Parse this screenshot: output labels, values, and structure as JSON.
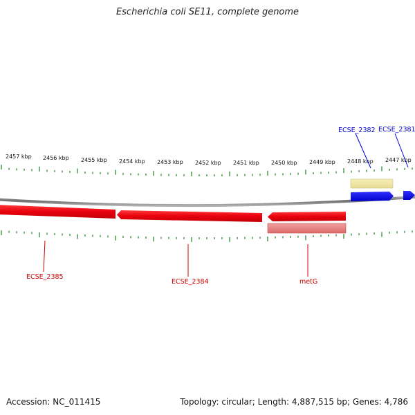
{
  "title": "Escherichia coli SE11, complete genome",
  "footer": {
    "accession": "Accession: NC_011415",
    "summary": "Topology: circular; Length: 4,887,515 bp; Genes: 4,786"
  },
  "colors": {
    "reverse_gene": "#e8000d",
    "reverse_gene_light": "#e88080",
    "forward_gene": "#0000e0",
    "forward_gene_light": "#efe6a0",
    "tick": "#2e8b2e",
    "backbone": "#8a8a8a"
  },
  "scale": {
    "unit": "kbp",
    "labels": [
      "2457 kbp",
      "2456 kbp",
      "2455 kbp",
      "2454 kbp",
      "2453 kbp",
      "2452 kbp",
      "2451 kbp",
      "2450 kbp",
      "2449 kbp",
      "2448 kbp",
      "2447 kbp"
    ]
  },
  "genes": [
    {
      "name": "ECSE_2381",
      "strand": "forward"
    },
    {
      "name": "ECSE_2382",
      "strand": "forward"
    },
    {
      "name": "ECSE_2384",
      "strand": "reverse"
    },
    {
      "name": "ECSE_2385",
      "strand": "reverse"
    },
    {
      "name": "metG",
      "strand": "reverse"
    }
  ]
}
